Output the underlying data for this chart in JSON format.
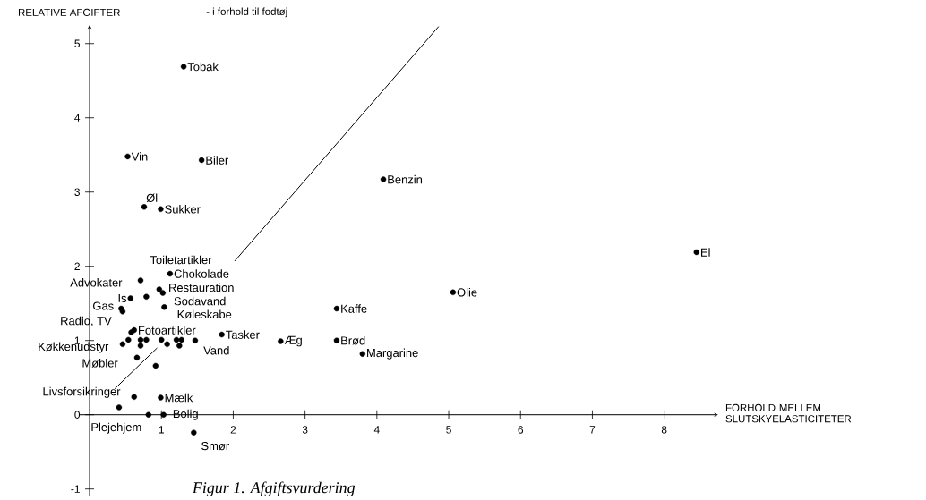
{
  "chart_data": {
    "type": "scatter",
    "title": "Figur 1. Afgiftsvurdering",
    "subtitle": "- i forhold til fodtøj",
    "xlabel": "FORHOLD MELLEM SLUTSKYELASTICITETER",
    "ylabel": "RELATIVE AFGIFTER",
    "xlim": [
      -0.15,
      8.75
    ],
    "ylim": [
      -1.1,
      5.25
    ],
    "xticks": [
      1,
      2,
      3,
      4,
      5,
      6,
      7,
      8
    ],
    "yticks": [
      -1,
      0,
      1,
      2,
      3,
      4,
      5
    ],
    "series": [
      {
        "marker": "circle",
        "color": "#000000",
        "x": [
          1.31,
          0.53,
          1.56,
          0.76,
          0.99,
          4.09,
          8.45,
          5.06,
          3.44,
          3.44,
          3.8,
          2.66,
          1.84,
          1.47,
          0.62,
          1.04,
          1.02,
          0.97,
          1.12,
          0.71,
          0.79,
          0.57,
          0.44,
          0.46,
          0.58,
          0.46,
          0.62,
          0.99,
          1.03,
          0.82,
          1.45,
          0.71,
          0.79,
          0.71,
          1.0,
          1.08,
          1.21,
          1.25,
          1.28,
          0.54,
          0.66,
          0.92,
          0.41
        ],
        "values": [
          4.69,
          3.48,
          3.43,
          2.8,
          2.77,
          3.17,
          2.19,
          1.65,
          1.43,
          1.0,
          0.82,
          0.99,
          1.08,
          1.0,
          1.14,
          1.45,
          1.64,
          1.69,
          1.9,
          1.81,
          1.59,
          1.57,
          1.43,
          1.39,
          1.11,
          0.95,
          0.24,
          0.23,
          0.0,
          0.0,
          -0.24,
          1.01,
          1.01,
          0.93,
          1.01,
          0.95,
          1.01,
          0.93,
          1.01,
          1.01,
          0.77,
          0.66,
          0.1
        ]
      },
      {
        "type": "line",
        "color": "#000000",
        "x": [
          0.35,
          0.94,
          1.5,
          2.02,
          4.86
        ],
        "values": [
          0.35,
          0.9,
          null,
          2.07,
          5.23
        ]
      }
    ],
    "annotations": [
      {
        "text": "Tobak",
        "x": 1.31,
        "y": 4.69
      },
      {
        "text": "Vin",
        "x": 0.53,
        "y": 3.48
      },
      {
        "text": "Biler",
        "x": 1.56,
        "y": 3.43
      },
      {
        "text": "Øl",
        "x": 0.76,
        "y": 2.8
      },
      {
        "text": "Sukker",
        "x": 0.99,
        "y": 2.77
      },
      {
        "text": "Benzin",
        "x": 4.09,
        "y": 3.17
      },
      {
        "text": "El",
        "x": 8.45,
        "y": 2.19
      },
      {
        "text": "Olie",
        "x": 5.06,
        "y": 1.65
      },
      {
        "text": "Kaffe",
        "x": 3.44,
        "y": 1.43
      },
      {
        "text": "Brød",
        "x": 3.44,
        "y": 1.0
      },
      {
        "text": "Margarine",
        "x": 3.8,
        "y": 0.82
      },
      {
        "text": "Æg",
        "x": 2.66,
        "y": 0.99
      },
      {
        "text": "Tasker",
        "x": 1.84,
        "y": 1.08
      },
      {
        "text": "Vand",
        "x": 1.47,
        "y": 1.0
      },
      {
        "text": "Fotoartikler",
        "x": 0.62,
        "y": 1.14
      },
      {
        "text": "Køleskabe",
        "x": 1.04,
        "y": 1.45
      },
      {
        "text": "Sodavand",
        "x": 1.02,
        "y": 1.64
      },
      {
        "text": "Restauration",
        "x": 0.97,
        "y": 1.69
      },
      {
        "text": "Chokolade",
        "x": 1.12,
        "y": 1.9
      },
      {
        "text": "Toiletartikler",
        "x": 0.71,
        "y": 1.81
      },
      {
        "text": "Advokater",
        "x": 0.79,
        "y": 1.59
      },
      {
        "text": "Is",
        "x": 0.57,
        "y": 1.57
      },
      {
        "text": "Gas",
        "x": 0.44,
        "y": 1.43
      },
      {
        "text": "Radio, TV",
        "x": 0.46,
        "y": 1.39
      },
      {
        "text": "Køkkenudstyr",
        "x": 0.58,
        "y": 1.11
      },
      {
        "text": "Møbler",
        "x": 0.46,
        "y": 0.95
      },
      {
        "text": "Livsforsikringer",
        "x": 0.62,
        "y": 0.24
      },
      {
        "text": "Mælk",
        "x": 0.99,
        "y": 0.23
      },
      {
        "text": "Bolig",
        "x": 1.03,
        "y": 0.0
      },
      {
        "text": "Plejehjem",
        "x": 0.82,
        "y": 0.0
      },
      {
        "text": "Smør",
        "x": 1.45,
        "y": -0.24
      }
    ]
  }
}
